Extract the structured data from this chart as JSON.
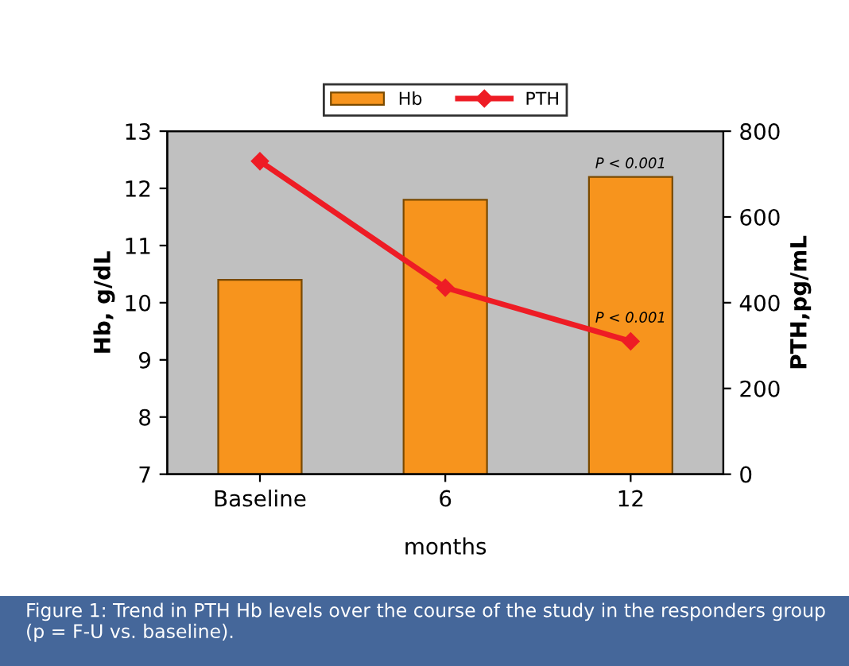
{
  "chart_data": {
    "type": "bar",
    "categories": [
      "Baseline",
      "6",
      "12"
    ],
    "xlabel": "months",
    "ylabel": "Hb, g/dL",
    "y2label": "PTH,pg/mL",
    "series": [
      {
        "name": "Hb",
        "color": "#f7941d",
        "values": [
          10.4,
          11.8,
          12.2
        ]
      },
      {
        "name": "PTH",
        "type": "line",
        "axis": "y2",
        "color": "#ee1c25",
        "values": [
          730,
          435,
          310
        ]
      }
    ],
    "ylim": [
      7,
      13
    ],
    "yticks": [
      7,
      8,
      9,
      10,
      11,
      12,
      13
    ],
    "y2lim": [
      0,
      800
    ],
    "y2ticks": [
      0,
      200,
      400,
      600,
      800
    ],
    "marker": "diamond",
    "line_style": "solid",
    "legend": "top",
    "grid": false,
    "annotations": [
      {
        "text": "P < 0.001",
        "x": "12",
        "y": 12.2
      },
      {
        "text": "P < 0.001",
        "x": "12",
        "y": 9.5
      },
      "Figure 1: Trend in PTH Hb levels over the course of the study in the responders group (p = F-U vs. baseline)."
    ]
  }
}
